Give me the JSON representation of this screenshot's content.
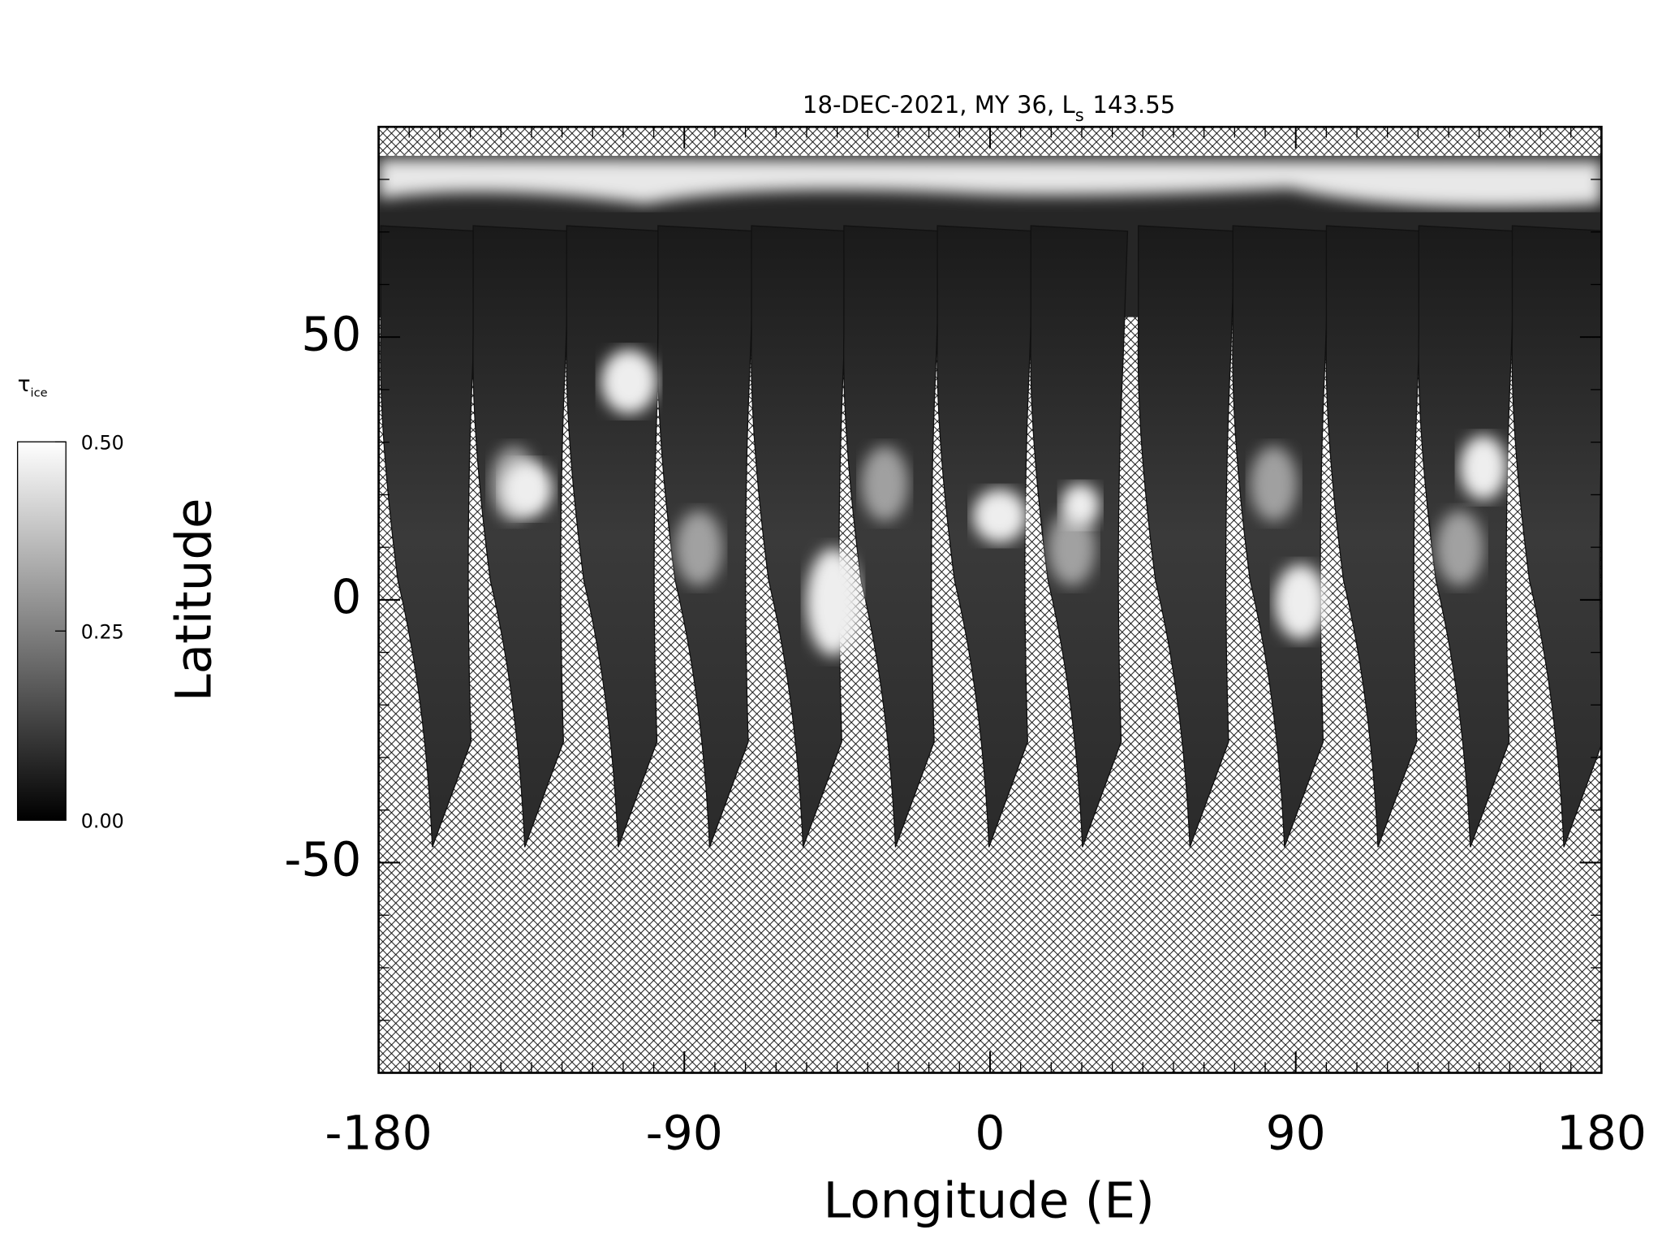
{
  "chart_data": {
    "type": "map",
    "title": "18-DEC-2021, MY 36,  L",
    "title_subscript": "s",
    "title_suffix": "143.55",
    "xlabel": "Longitude (E)",
    "ylabel": "Latitude",
    "xlim": [
      -180,
      180
    ],
    "ylim": [
      -90,
      90
    ],
    "xticks": [
      -180,
      -90,
      0,
      90,
      180
    ],
    "yticks": [
      -50,
      0,
      50
    ],
    "xminor": 9,
    "yminor": 10,
    "colorbar": {
      "label": "τ",
      "label_subscript": "ice",
      "clim": [
        0,
        0.5
      ],
      "ticks": [
        {
          "value": 0,
          "label": "0.00"
        },
        {
          "value": 0.25,
          "label": "0.25"
        },
        {
          "value": 0.5,
          "label": "0.50"
        }
      ]
    }
  }
}
